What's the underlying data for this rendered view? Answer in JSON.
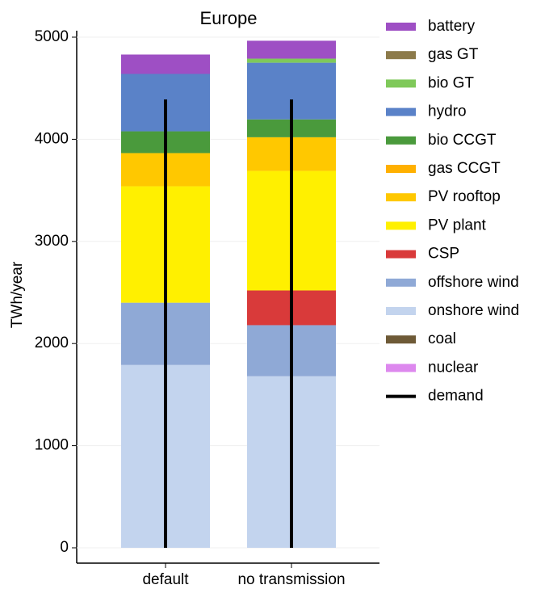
{
  "chart_data": {
    "type": "stacked_bar",
    "title": "Europe",
    "ylabel": "TWh/year",
    "categories": [
      "default",
      "no transmission"
    ],
    "ylim": [
      0,
      5000
    ],
    "yticks": [
      0,
      1000,
      2000,
      3000,
      4000,
      5000
    ],
    "grid": true,
    "series": [
      {
        "name": "nuclear",
        "color": "#dd88ee",
        "values": [
          0,
          0
        ]
      },
      {
        "name": "coal",
        "color": "#6e5a37",
        "values": [
          0,
          0
        ]
      },
      {
        "name": "onshore wind",
        "color": "#c3d4ee",
        "values": [
          1790,
          1680
        ]
      },
      {
        "name": "offshore wind",
        "color": "#8fa9d6",
        "values": [
          610,
          500
        ]
      },
      {
        "name": "CSP",
        "color": "#d93a3a",
        "values": [
          0,
          340
        ]
      },
      {
        "name": "PV plant",
        "color": "#fff000",
        "values": [
          1140,
          1170
        ]
      },
      {
        "name": "PV rooftop",
        "color": "#ffc800",
        "values": [
          325,
          330
        ]
      },
      {
        "name": "gas CCGT",
        "color": "#ffb000",
        "values": [
          0,
          0
        ]
      },
      {
        "name": "bio CCGT",
        "color": "#4a9a3c",
        "values": [
          213,
          175
        ]
      },
      {
        "name": "hydro",
        "color": "#5a82c8",
        "values": [
          562,
          555
        ]
      },
      {
        "name": "bio GT",
        "color": "#7fc95a",
        "values": [
          0,
          40
        ]
      },
      {
        "name": "gas GT",
        "color": "#8c7a4a",
        "values": [
          0,
          0
        ]
      },
      {
        "name": "battery",
        "color": "#9e4fc4",
        "values": [
          190,
          175
        ]
      }
    ],
    "demand": {
      "name": "demand",
      "color": "#000000",
      "values": [
        4390,
        4390
      ]
    }
  }
}
